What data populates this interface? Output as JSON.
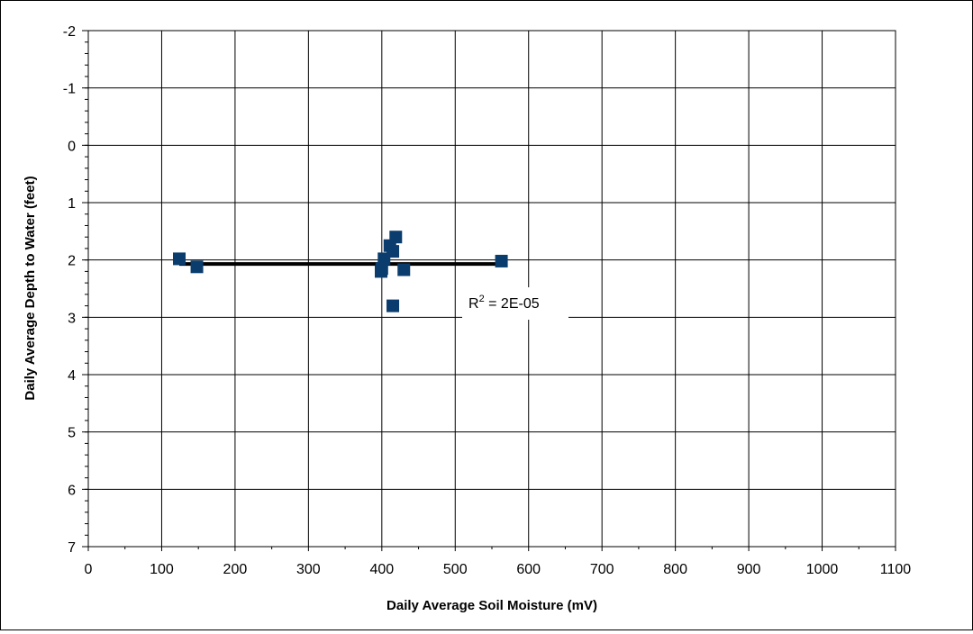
{
  "chart_data": {
    "type": "scatter",
    "xlabel": "Daily Average Soil Moisture (mV)",
    "ylabel": "Daily Average Depth to Water (feet)",
    "xlim": [
      0,
      1100
    ],
    "ylim": [
      7,
      -2
    ],
    "y_axis_reversed": true,
    "grid": true,
    "x_ticks": [
      "0",
      "100",
      "200",
      "300",
      "400",
      "500",
      "600",
      "700",
      "800",
      "900",
      "1000",
      "1100"
    ],
    "y_ticks": [
      "-2",
      "-1",
      "0",
      "1",
      "2",
      "3",
      "4",
      "5",
      "6",
      "7"
    ],
    "points_x": [
      124,
      148,
      399,
      400,
      403,
      411,
      415,
      419,
      430,
      415,
      563
    ],
    "points_y": [
      1.98,
      2.12,
      2.2,
      2.15,
      1.98,
      1.75,
      1.85,
      1.6,
      2.17,
      2.8,
      2.02
    ],
    "marker_color": "#0a3d6e",
    "trendline": {
      "x": [
        124,
        563
      ],
      "y": [
        2.07,
        2.07
      ],
      "color": "#000000"
    },
    "annotation": {
      "base": "R",
      "superscript": "2",
      "rest": " = 2E-05"
    }
  }
}
